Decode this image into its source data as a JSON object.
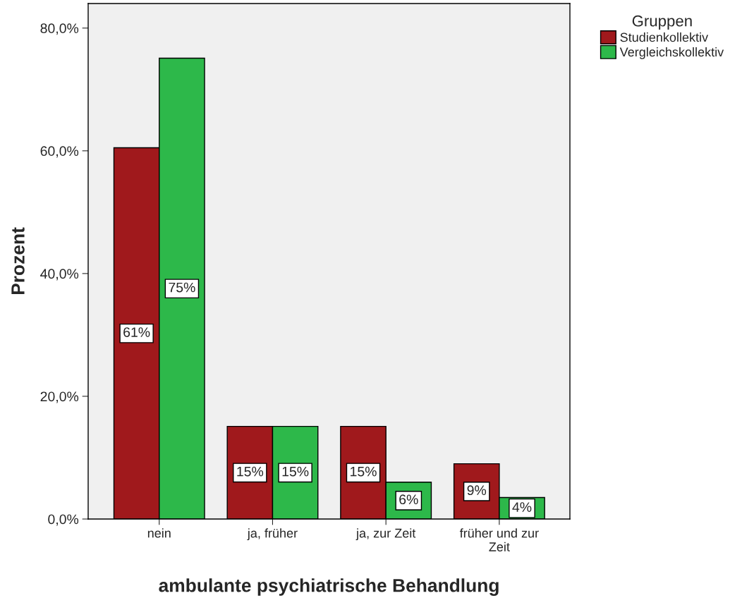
{
  "chart_data": {
    "type": "bar",
    "xlabel": "ambulante psychiatrische Behandlung",
    "ylabel": "Prozent",
    "legend_title": "Gruppen",
    "categories": [
      "nein",
      "ja, früher",
      "ja, zur Zeit",
      "früher und zur\nZeit"
    ],
    "series": [
      {
        "name": "Studienkollektiv",
        "color": "#a0191c",
        "values": [
          60.5,
          15.1,
          15.1,
          9.0
        ],
        "value_labels": [
          "61%",
          "15%",
          "15%",
          "9%"
        ]
      },
      {
        "name": "Vergleichskollektiv",
        "color": "#2db84a",
        "values": [
          75.1,
          15.1,
          6.0,
          3.5
        ],
        "value_labels": [
          "75%",
          "15%",
          "6%",
          "4%"
        ]
      }
    ],
    "ylim": [
      0,
      84
    ],
    "yticks": [
      {
        "value": 0,
        "label": "0,0%"
      },
      {
        "value": 20,
        "label": "20,0%"
      },
      {
        "value": 40,
        "label": "40,0%"
      },
      {
        "value": 60,
        "label": "60,0%"
      },
      {
        "value": 80,
        "label": "80,0%"
      }
    ],
    "legend": "top right",
    "grid": false
  }
}
